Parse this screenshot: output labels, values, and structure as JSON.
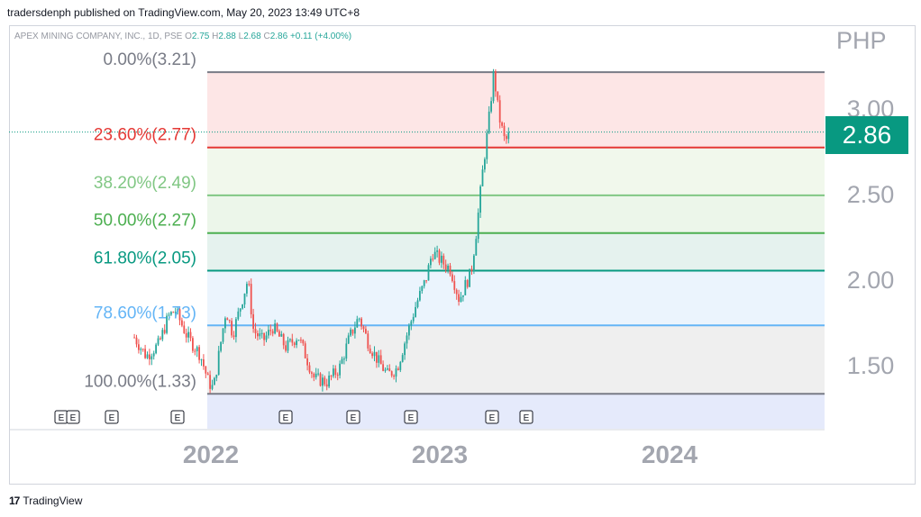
{
  "header": {
    "published": "tradersdenph published on TradingView.com, May 20, 2023 13:49 UTC+8"
  },
  "legend": {
    "symbol": "APEX MINING COMPANY, INC., 1D, PSE",
    "o_label": "O",
    "o_value": "2.75",
    "h_label": "H",
    "h_value": "2.88",
    "l_label": "L",
    "l_value": "2.68",
    "c_label": "C",
    "c_value": "2.86",
    "change": "+0.11 (+4.00%)"
  },
  "axis": {
    "currency": "PHP",
    "last_price": "2.86"
  },
  "footer": {
    "logo_glyph": "17",
    "brand": "TradingView"
  },
  "colors": {
    "up": "#26a69a",
    "down": "#ef5350",
    "price_tag": "#089981"
  },
  "chart_data": {
    "type": "candlestick",
    "title": "APEX MINING COMPANY, INC., 1D, PSE",
    "y_axis": {
      "ticks": [
        1.5,
        2.0,
        2.5,
        3.0
      ],
      "tick_labels": [
        "1.50",
        "2.00",
        "2.50",
        "3.00"
      ],
      "unit": "PHP"
    },
    "x_axis": {
      "tick_labels": [
        "2022",
        "2023",
        "2024"
      ]
    },
    "fibonacci": [
      {
        "ratio": "0.00%",
        "price": 3.21,
        "label": "0.00%(3.21)",
        "line": "#787b86",
        "text": "#787b86",
        "fill": "#fde6e6"
      },
      {
        "ratio": "23.60%",
        "price": 2.77,
        "label": "23.60%(2.77)",
        "line": "#e53935",
        "text": "#e53935",
        "fill": "#f1f8ec"
      },
      {
        "ratio": "38.20%",
        "price": 2.49,
        "label": "38.20%(2.49)",
        "line": "#81c784",
        "text": "#81c784",
        "fill": "#ecf6ea"
      },
      {
        "ratio": "50.00%",
        "price": 2.27,
        "label": "50.00%(2.27)",
        "line": "#4caf50",
        "text": "#4caf50",
        "fill": "#e5f2ee"
      },
      {
        "ratio": "61.80%",
        "price": 2.05,
        "label": "61.80%(2.05)",
        "line": "#089981",
        "text": "#089981",
        "fill": "#ebf4fd"
      },
      {
        "ratio": "78.60%",
        "price": 1.73,
        "label": "78.60%(1.73)",
        "line": "#64b5f6",
        "text": "#64b5f6",
        "fill": "#efefef"
      },
      {
        "ratio": "100.00%",
        "price": 1.33,
        "label": "100.00%(1.33)",
        "line": "#787b86",
        "text": "#787b86",
        "fill": "#e5eafb"
      }
    ],
    "earnings_markers": [
      "E",
      "E",
      "E",
      "E",
      "E",
      "E",
      "E",
      "E",
      "E"
    ],
    "price_path": [
      [
        "2021-09-01",
        1.66
      ],
      [
        "2021-09-20",
        1.55
      ],
      [
        "2021-10-10",
        1.62
      ],
      [
        "2021-10-25",
        1.78
      ],
      [
        "2021-11-05",
        1.82
      ],
      [
        "2021-11-25",
        1.66
      ],
      [
        "2021-12-15",
        1.56
      ],
      [
        "2021-12-28",
        1.4
      ],
      [
        "2022-01-05",
        1.36
      ],
      [
        "2022-01-12",
        1.52
      ],
      [
        "2022-01-25",
        1.82
      ],
      [
        "2022-02-05",
        1.68
      ],
      [
        "2022-02-20",
        1.88
      ],
      [
        "2022-03-01",
        2.0
      ],
      [
        "2022-03-10",
        1.7
      ],
      [
        "2022-03-25",
        1.64
      ],
      [
        "2022-04-10",
        1.72
      ],
      [
        "2022-05-01",
        1.6
      ],
      [
        "2022-05-20",
        1.67
      ],
      [
        "2022-06-15",
        1.42
      ],
      [
        "2022-07-05",
        1.4
      ],
      [
        "2022-07-25",
        1.48
      ],
      [
        "2022-08-10",
        1.66
      ],
      [
        "2022-08-25",
        1.78
      ],
      [
        "2022-09-10",
        1.62
      ],
      [
        "2022-09-25",
        1.52
      ],
      [
        "2022-10-10",
        1.44
      ],
      [
        "2022-10-25",
        1.48
      ],
      [
        "2022-11-10",
        1.68
      ],
      [
        "2022-11-25",
        1.86
      ],
      [
        "2022-12-10",
        2.0
      ],
      [
        "2022-12-20",
        2.16
      ],
      [
        "2023-01-05",
        2.1
      ],
      [
        "2023-01-18",
        2.06
      ],
      [
        "2023-02-01",
        1.88
      ],
      [
        "2023-02-10",
        1.96
      ],
      [
        "2023-02-20",
        2.04
      ],
      [
        "2023-03-01",
        2.3
      ],
      [
        "2023-03-10",
        2.62
      ],
      [
        "2023-03-20",
        2.92
      ],
      [
        "2023-03-28",
        3.21
      ],
      [
        "2023-04-05",
        2.96
      ],
      [
        "2023-04-15",
        2.8
      ],
      [
        "2023-04-24",
        2.86
      ]
    ],
    "ohlc_last": {
      "open": 2.75,
      "high": 2.88,
      "low": 2.68,
      "close": 2.86,
      "change": 0.11,
      "change_pct": 4.0
    },
    "grid": false
  }
}
